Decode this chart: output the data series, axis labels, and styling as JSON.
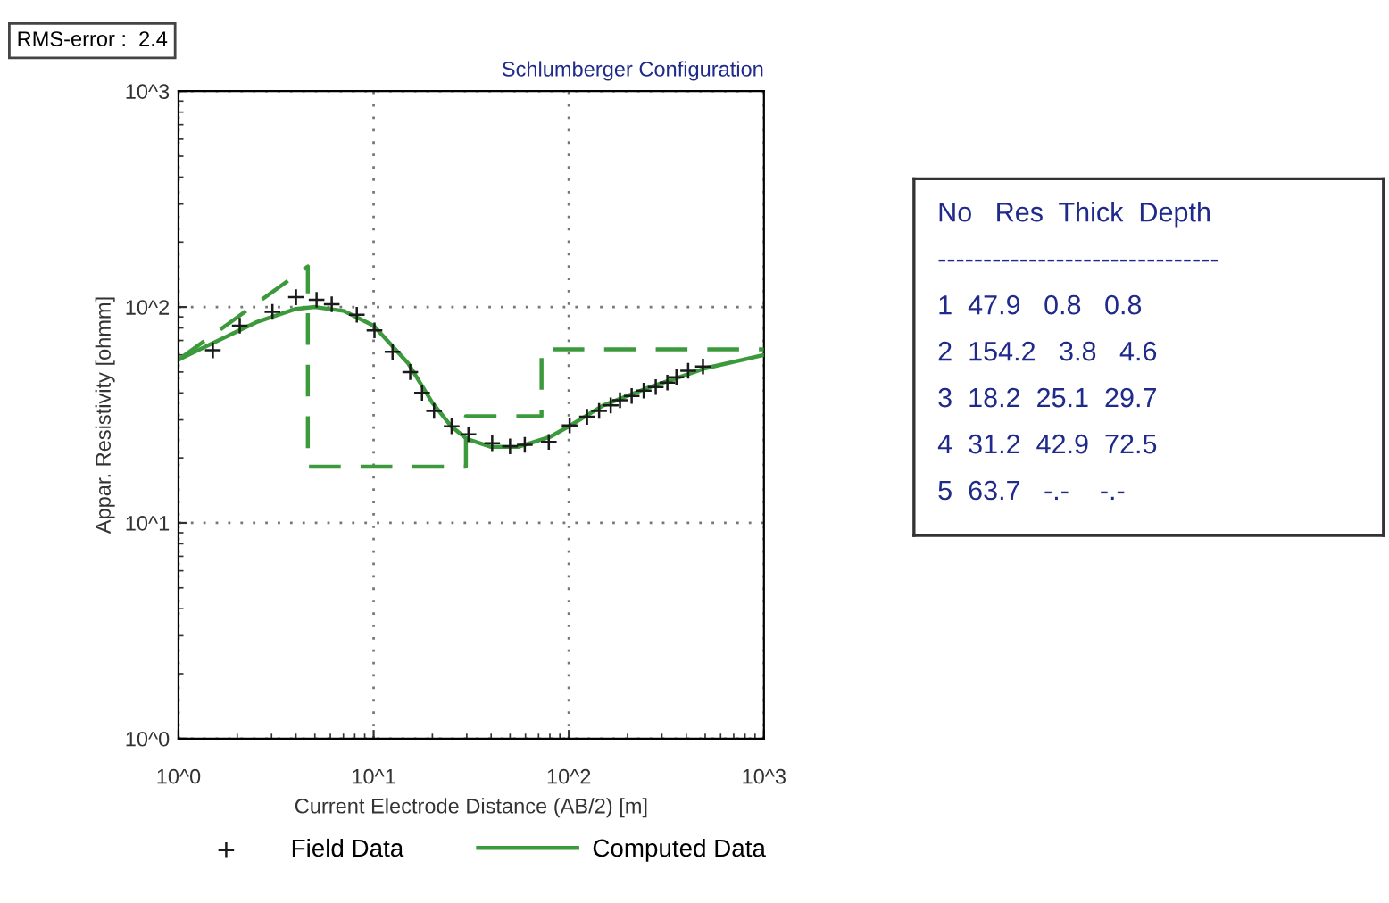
{
  "chart_data": [
    {
      "type": "line",
      "title": "Schlumberger Configuration",
      "xlabel": "Current Electrode Distance (AB/2) [m]",
      "ylabel": "Appar. Resistivity [ohmm]",
      "log": "xy",
      "grid": true,
      "legend": "bottom",
      "xlim": [
        1,
        1000
      ],
      "ylim": [
        1,
        1000
      ],
      "xticks": [
        {
          "value": 1,
          "label": "10^0"
        },
        {
          "value": 10,
          "label": "10^1"
        },
        {
          "value": 100,
          "label": "10^2"
        },
        {
          "value": 1000,
          "label": "10^3"
        }
      ],
      "yticks": [
        {
          "value": 1,
          "label": "10^0"
        },
        {
          "value": 10,
          "label": "10^1"
        },
        {
          "value": 100,
          "label": "10^2"
        },
        {
          "value": 1000,
          "label": "10^3"
        }
      ],
      "annotations": [
        "RMS-error :  2.4"
      ],
      "series": [
        {
          "name": "Field Data",
          "type": "scatter",
          "marker": "cross",
          "color": "#1a1a1a",
          "x": [
            1.5,
            2.06,
            3.03,
            4.0,
            5.1,
            6.1,
            8.2,
            10.1,
            12.5,
            15.4,
            17.7,
            20.4,
            25.1,
            30.6,
            40.5,
            50,
            59.5,
            79,
            101,
            124,
            143,
            164,
            183,
            210,
            242,
            279,
            320,
            356,
            409,
            487
          ],
          "values": [
            63,
            82,
            95,
            111,
            108,
            103,
            92,
            78,
            62,
            50,
            40,
            33,
            28,
            25.7,
            23.4,
            22.6,
            23,
            23.7,
            28.3,
            31,
            33,
            35,
            37,
            38.7,
            41,
            42.6,
            44.7,
            47.3,
            50.7,
            53
          ]
        },
        {
          "name": "Computed Data",
          "type": "line",
          "line_style": "solid",
          "color": "#3c9a3c",
          "x": [
            1,
            1.5,
            2.5,
            4,
            5,
            7,
            10,
            15,
            20,
            25,
            30,
            40,
            55,
            80,
            100,
            150,
            250,
            500,
            1000
          ],
          "values": [
            57,
            68,
            85,
            98,
            100,
            96,
            82,
            55,
            36,
            28,
            24.5,
            22.5,
            22.5,
            25,
            28,
            35,
            42,
            52,
            60
          ]
        },
        {
          "type": "line",
          "line_style": "dashed",
          "color": "#3c9a3c",
          "x": [
            1,
            4.6,
            4.6,
            29.7,
            29.7,
            72.5,
            72.5,
            1000
          ],
          "values": [
            57,
            154.2,
            18.2,
            18.2,
            31.2,
            31.2,
            63.7,
            63.7
          ]
        }
      ]
    },
    {
      "type": "other",
      "annotations": [
        "No   Res  Thick  Depth",
        "-------------------------------",
        "1  47.9   0.8   0.8",
        "2  154.2   3.8   4.6",
        "3  18.2  25.1  29.7",
        "4  31.2  42.9  72.5",
        "5  63.7   -.-    -.-"
      ]
    }
  ]
}
